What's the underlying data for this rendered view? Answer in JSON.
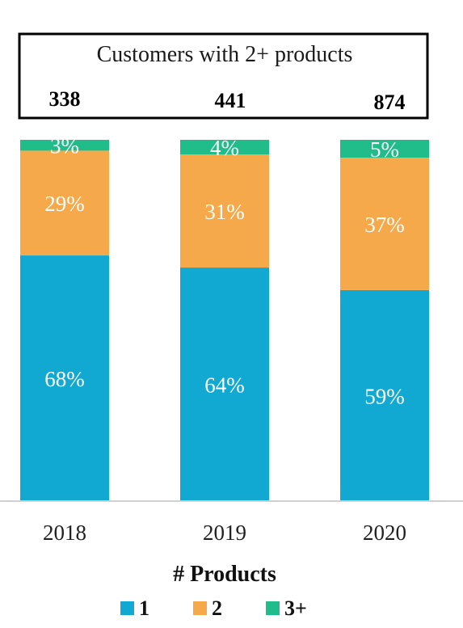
{
  "chart_data": {
    "type": "bar",
    "stacked": true,
    "percent": true,
    "categories": [
      "2018",
      "2019",
      "2020"
    ],
    "series": [
      {
        "name": "1",
        "values": [
          68,
          64,
          59
        ],
        "color": "#11A9D2"
      },
      {
        "name": "2",
        "values": [
          29,
          31,
          37
        ],
        "color": "#F6A94A"
      },
      {
        "name": "3+",
        "values": [
          3,
          4,
          5
        ],
        "color": "#20BC8A"
      }
    ],
    "data_labels": [
      [
        "68%",
        "64%",
        "59%"
      ],
      [
        "29%",
        "31%",
        "37%"
      ],
      [
        "3%",
        "4%",
        "5%"
      ]
    ],
    "annotation_box": {
      "title": "Customers with 2+ products",
      "values": [
        "338",
        "441",
        "874"
      ]
    },
    "legend": {
      "title": "# Products",
      "position": "bottom"
    },
    "grid": false,
    "ylim": [
      0,
      100
    ],
    "xlabel": "",
    "ylabel": ""
  }
}
